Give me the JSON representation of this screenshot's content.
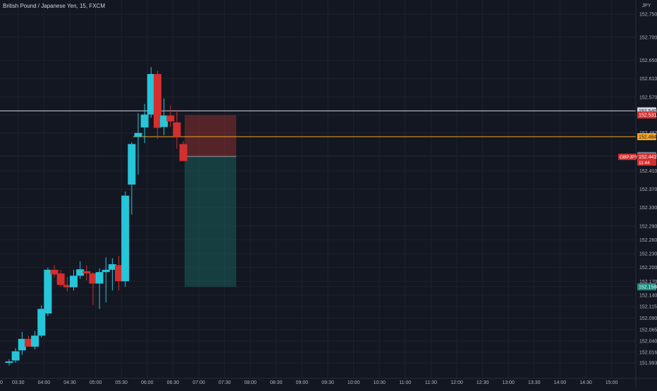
{
  "header": {
    "symbol_title": "British Pound / Japanese Yen, 15, FXCM",
    "currency": "JPY"
  },
  "colors": {
    "background": "#131722",
    "grid": "#1e222d",
    "up": "#26c6da",
    "down": "#d32f2f",
    "axis_text": "#b2b5be",
    "white_line": "#d1d4dc",
    "orange_line": "#f5a623",
    "red_zone": "#8b2f2f",
    "green_zone": "#1a5f5a"
  },
  "chart_data": {
    "type": "candlestick",
    "title": "British Pound / Japanese Yen, 15, FXCM",
    "ylim": [
      151.97,
      152.77
    ],
    "x_ticks": [
      "03:30",
      "04:00",
      "04:30",
      "05:00",
      "05:30",
      "06:00",
      "06:30",
      "07:00",
      "07:30",
      "08:00",
      "08:30",
      "09:00",
      "09:30",
      "10:00",
      "10:30",
      "11:00",
      "11:30",
      "12:00",
      "12:30",
      "13:00",
      "13:30",
      "14:00",
      "14:30",
      "15:00"
    ],
    "y_ticks": [
      "152.750",
      "152.700",
      "152.650",
      "152.610",
      "152.570",
      "152.540",
      "152.531",
      "152.492",
      "152.443",
      "152.441",
      "152.410",
      "152.370",
      "152.330",
      "152.290",
      "152.260",
      "152.230",
      "152.200",
      "152.170",
      "152.158",
      "152.140",
      "152.115",
      "152.090",
      "152.065",
      "152.040",
      "152.016",
      "151.993"
    ],
    "candles": [
      {
        "t": 0.0,
        "o": 151.993,
        "h": 152.001,
        "l": 151.987,
        "c": 151.996
      },
      {
        "t": 0.5,
        "o": 151.998,
        "h": 152.025,
        "l": 151.993,
        "c": 152.018
      },
      {
        "t": 1.0,
        "o": 152.02,
        "h": 152.06,
        "l": 152.01,
        "c": 152.045
      },
      {
        "t": 1.5,
        "o": 152.045,
        "h": 152.052,
        "l": 152.03,
        "c": 152.028
      },
      {
        "t": 2.0,
        "o": 152.028,
        "h": 152.062,
        "l": 152.022,
        "c": 152.052
      },
      {
        "t": 2.5,
        "o": 152.052,
        "h": 152.118,
        "l": 152.048,
        "c": 152.11
      },
      {
        "t": 3.0,
        "o": 152.1,
        "h": 152.2,
        "l": 152.094,
        "c": 152.195
      },
      {
        "t": 3.5,
        "o": 152.195,
        "h": 152.205,
        "l": 152.178,
        "c": 152.185
      },
      {
        "t": 4.0,
        "o": 152.187,
        "h": 152.195,
        "l": 152.158,
        "c": 152.162
      },
      {
        "t": 4.5,
        "o": 152.162,
        "h": 152.18,
        "l": 152.148,
        "c": 152.157
      },
      {
        "t": 5.0,
        "o": 152.157,
        "h": 152.195,
        "l": 152.15,
        "c": 152.182
      },
      {
        "t": 5.5,
        "o": 152.182,
        "h": 152.213,
        "l": 152.175,
        "c": 152.196
      },
      {
        "t": 6.0,
        "o": 152.192,
        "h": 152.205,
        "l": 152.172,
        "c": 152.187
      },
      {
        "t": 6.5,
        "o": 152.187,
        "h": 152.19,
        "l": 152.118,
        "c": 152.165
      },
      {
        "t": 7.0,
        "o": 152.165,
        "h": 152.198,
        "l": 152.11,
        "c": 152.19
      },
      {
        "t": 7.5,
        "o": 152.19,
        "h": 152.222,
        "l": 152.124,
        "c": 152.195
      },
      {
        "t": 8.0,
        "o": 152.195,
        "h": 152.22,
        "l": 152.15,
        "c": 152.207
      },
      {
        "t": 8.5,
        "o": 152.205,
        "h": 152.225,
        "l": 152.15,
        "c": 152.17
      },
      {
        "t": 9.0,
        "o": 152.17,
        "h": 152.365,
        "l": 152.158,
        "c": 152.356
      },
      {
        "t": 9.5,
        "o": 152.38,
        "h": 152.472,
        "l": 152.315,
        "c": 152.468
      },
      {
        "t": 10.0,
        "o": 152.484,
        "h": 152.535,
        "l": 152.402,
        "c": 152.492
      },
      {
        "t": 10.5,
        "o": 152.504,
        "h": 152.555,
        "l": 152.47,
        "c": 152.532
      },
      {
        "t": 11.0,
        "o": 152.532,
        "h": 152.635,
        "l": 152.525,
        "c": 152.62
      },
      {
        "t": 11.5,
        "o": 152.62,
        "h": 152.627,
        "l": 152.479,
        "c": 152.503
      },
      {
        "t": 12.0,
        "o": 152.505,
        "h": 152.567,
        "l": 152.487,
        "c": 152.53
      },
      {
        "t": 12.5,
        "o": 152.53,
        "h": 152.552,
        "l": 152.505,
        "c": 152.517
      },
      {
        "t": 13.0,
        "o": 152.515,
        "h": 152.542,
        "l": 152.458,
        "c": 152.484
      },
      {
        "t": 13.5,
        "o": 152.468,
        "h": 152.474,
        "l": 152.431,
        "c": 152.431
      }
    ],
    "horizontal_lines": [
      {
        "price": 152.54,
        "color": "#d1d4dc",
        "label": "152.540"
      },
      {
        "price": 152.484,
        "color": "#f5a623",
        "label": "152.484",
        "start_t": 10.0
      }
    ],
    "position_tool": {
      "entry": 152.441,
      "stop": 152.531,
      "target": 152.158,
      "start_t": 14.0,
      "end_t": 17.0
    },
    "price_labels": [
      {
        "price": 152.54,
        "text": "152.540",
        "bg": "#d1d4dc",
        "fg": "#131722"
      },
      {
        "price": 152.531,
        "text": "152.531",
        "bg": "#d32f2f",
        "fg": "#ffffff"
      },
      {
        "price": 152.484,
        "text": "152.484",
        "bg": "#f5a623",
        "fg": "#131722"
      },
      {
        "price": 152.443,
        "text": "152.443",
        "bg": "#787b86",
        "fg": "#ffffff"
      },
      {
        "price": 152.158,
        "text": "152.158",
        "bg": "#1a8c82",
        "fg": "#ffffff"
      }
    ],
    "current_price_tag": {
      "price": 152.441,
      "symbol": "GBPJPY",
      "value": "152.441",
      "countdown": "11:44"
    },
    "visible_left_cut_tick": "0"
  }
}
